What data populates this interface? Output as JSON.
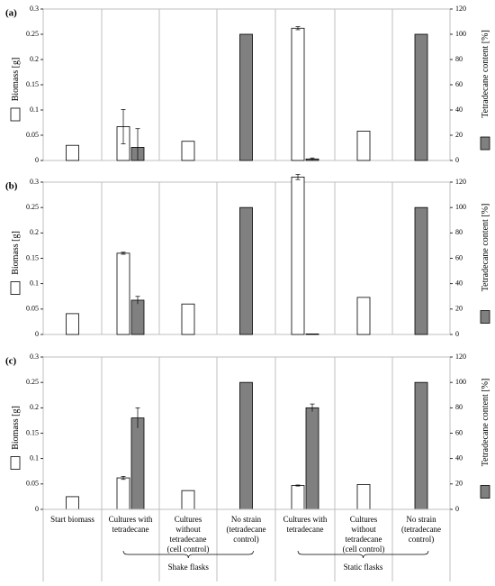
{
  "chart_data": {
    "type": "bar",
    "left_axis_label": "Biomass [g]",
    "right_axis_label": "Tetradecane content [%]",
    "left_ticks": [
      "0",
      "0.05",
      "0.1",
      "0.15",
      "0.2",
      "0.25",
      "0.3"
    ],
    "right_ticks": [
      "0",
      "20",
      "40",
      "60",
      "80",
      "100",
      "120"
    ],
    "ylim_left": [
      0,
      0.3
    ],
    "ylim_right": [
      0,
      120
    ],
    "categories": [
      [
        "Start biomass"
      ],
      [
        "Cultures with",
        "tetradecane"
      ],
      [
        "Cultures",
        "without",
        "tetradecane",
        "(cell control)"
      ],
      [
        "No strain",
        "(tetradecane",
        "control)"
      ],
      [
        "Cultures with",
        "tetradecane"
      ],
      [
        "Cultures",
        "without",
        "tetradecane",
        "(cell control)"
      ],
      [
        "No strain",
        "(tetradecane",
        "control)"
      ]
    ],
    "groups": [
      {
        "label": "Shake flasks",
        "from": 1,
        "to": 3
      },
      {
        "label": "Static flasks",
        "from": 4,
        "to": 6
      }
    ],
    "series_styles": {
      "biomass": "#ffffff",
      "tetradecane": "#808080"
    },
    "panels": [
      {
        "label": "(a)",
        "biomass": [
          0.03,
          0.067,
          0.038,
          null,
          0.262,
          0.058,
          null
        ],
        "biomass_err": [
          null,
          0.034,
          null,
          null,
          0.003,
          null,
          null
        ],
        "tetradecane": [
          null,
          10.4,
          null,
          100,
          1.2,
          null,
          100
        ],
        "tetradecane_err": [
          null,
          14.8,
          null,
          null,
          0.8,
          null,
          null
        ]
      },
      {
        "label": "(b)",
        "biomass": [
          0.041,
          0.16,
          0.06,
          null,
          0.31,
          0.073,
          null
        ],
        "biomass_err": [
          null,
          0.002,
          null,
          null,
          0.005,
          null,
          null
        ],
        "tetradecane": [
          null,
          27,
          null,
          100,
          0,
          null,
          100
        ],
        "tetradecane_err": [
          null,
          3,
          null,
          null,
          null,
          null,
          null
        ]
      },
      {
        "label": "(c)",
        "biomass": [
          0.025,
          0.062,
          0.037,
          null,
          0.047,
          0.049,
          null
        ],
        "biomass_err": [
          null,
          0.003,
          null,
          null,
          0.001,
          null,
          null
        ],
        "tetradecane": [
          null,
          72,
          null,
          100,
          80,
          null,
          100
        ],
        "tetradecane_err": [
          null,
          8,
          null,
          null,
          3,
          null,
          null
        ]
      }
    ]
  }
}
